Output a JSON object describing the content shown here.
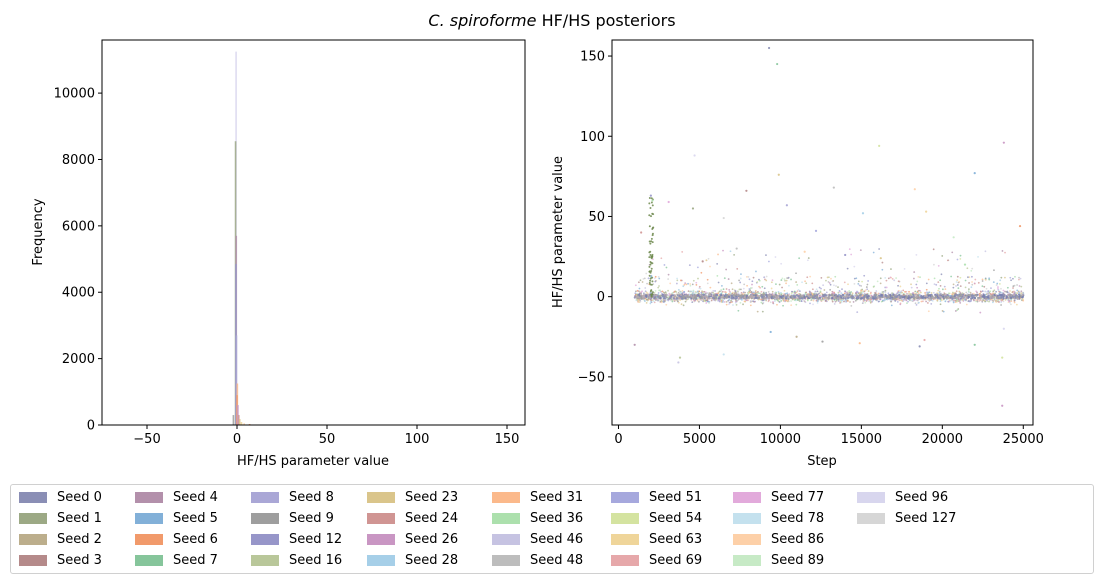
{
  "figure": {
    "title_italic": "C. spiroforme",
    "title_rest": " HF/HS posteriors"
  },
  "chart_data": [
    {
      "type": "histogram",
      "xlabel": "HF/HS parameter value",
      "ylabel": "Frequency",
      "xlim": [
        -75,
        160
      ],
      "ylim": [
        0,
        11600
      ],
      "xticks": [
        -50,
        0,
        50,
        100,
        150
      ],
      "yticks": [
        0,
        2000,
        4000,
        6000,
        8000,
        10000
      ],
      "bars": [
        {
          "x": -0.5,
          "value": 11250,
          "series": "Seed 96"
        },
        {
          "x": -0.8,
          "value": 8550,
          "series": "Seed 1"
        },
        {
          "x": -0.4,
          "value": 5700,
          "series": "Seed 4"
        },
        {
          "x": -0.6,
          "value": 4850,
          "series": "Seed 12"
        },
        {
          "x": -0.3,
          "value": 2700,
          "series": "Seed 8"
        },
        {
          "x": 0.2,
          "value": 1250,
          "series": "Seed 31"
        },
        {
          "x": 0.0,
          "value": 900,
          "series": "Seed 6"
        },
        {
          "x": 0.5,
          "value": 600,
          "series": "Seed 26"
        },
        {
          "x": 1.0,
          "value": 300,
          "series": "Seed 24"
        },
        {
          "x": -2.0,
          "value": 300,
          "series": "Seed 9"
        },
        {
          "x": 1.5,
          "value": 180,
          "series": "Seed 23"
        },
        {
          "x": 2.5,
          "value": 90,
          "series": "Seed 63"
        },
        {
          "x": 4.0,
          "value": 50,
          "series": "Seed 86"
        },
        {
          "x": 7.0,
          "value": 30,
          "series": "Seed 6"
        }
      ],
      "grid": false
    },
    {
      "type": "scatter",
      "xlabel": "Step",
      "ylabel": "HF/HS parameter value",
      "xlim": [
        -400,
        25600
      ],
      "ylim": [
        -80,
        160
      ],
      "xticks": [
        0,
        5000,
        10000,
        15000,
        20000,
        25000
      ],
      "yticks": [
        -50,
        0,
        50,
        100,
        150
      ],
      "step_range": [
        1000,
        25000
      ],
      "outliers": [
        {
          "x": 9300,
          "y": 155
        },
        {
          "x": 9800,
          "y": 145
        },
        {
          "x": 23800,
          "y": 96
        },
        {
          "x": 16100,
          "y": 94
        },
        {
          "x": 4700,
          "y": 88
        },
        {
          "x": 22000,
          "y": 77
        },
        {
          "x": 9900,
          "y": 76
        },
        {
          "x": 13300,
          "y": 68
        },
        {
          "x": 18300,
          "y": 67
        },
        {
          "x": 7900,
          "y": 66
        },
        {
          "x": 2000,
          "y": 63
        },
        {
          "x": 2100,
          "y": 60
        },
        {
          "x": 3100,
          "y": 59
        },
        {
          "x": 4600,
          "y": 55
        },
        {
          "x": 10400,
          "y": 57
        },
        {
          "x": 15100,
          "y": 52
        },
        {
          "x": 19000,
          "y": 53
        },
        {
          "x": 6500,
          "y": 49
        },
        {
          "x": 24800,
          "y": 44
        },
        {
          "x": 1400,
          "y": 40
        },
        {
          "x": 12200,
          "y": 41
        },
        {
          "x": 20700,
          "y": 37
        },
        {
          "x": 1000,
          "y": -30
        },
        {
          "x": 3800,
          "y": -38
        },
        {
          "x": 3700,
          "y": -41
        },
        {
          "x": 6500,
          "y": -36
        },
        {
          "x": 11000,
          "y": -25
        },
        {
          "x": 12600,
          "y": -28
        },
        {
          "x": 14900,
          "y": -29
        },
        {
          "x": 18900,
          "y": -27
        },
        {
          "x": 18600,
          "y": -31
        },
        {
          "x": 22000,
          "y": -30
        },
        {
          "x": 23700,
          "y": -68
        },
        {
          "x": 23700,
          "y": -38
        },
        {
          "x": 23800,
          "y": -20
        },
        {
          "x": 9400,
          "y": -22
        },
        {
          "x": 16200,
          "y": 24
        },
        {
          "x": 7300,
          "y": 30
        },
        {
          "x": 11500,
          "y": 28
        },
        {
          "x": 5200,
          "y": 22
        },
        {
          "x": 14000,
          "y": 26
        },
        {
          "x": 21400,
          "y": 20
        }
      ],
      "grid": false
    }
  ],
  "legend": {
    "placement": "bottom",
    "columns": 9,
    "items": [
      {
        "label": "Seed 0",
        "color": "#8a8eb5"
      },
      {
        "label": "Seed 1",
        "color": "#9ca985"
      },
      {
        "label": "Seed 2",
        "color": "#bcae8c"
      },
      {
        "label": "Seed 3",
        "color": "#b58a8a"
      },
      {
        "label": "Seed 4",
        "color": "#b390ab"
      },
      {
        "label": "Seed 5",
        "color": "#82b0d8"
      },
      {
        "label": "Seed 6",
        "color": "#f19a6b"
      },
      {
        "label": "Seed 7",
        "color": "#86c59b"
      },
      {
        "label": "Seed 8",
        "color": "#aaa7d6"
      },
      {
        "label": "Seed 9",
        "color": "#9e9e9e"
      },
      {
        "label": "Seed 12",
        "color": "#9796c9"
      },
      {
        "label": "Seed 16",
        "color": "#b9c79a"
      },
      {
        "label": "Seed 23",
        "color": "#dac58b"
      },
      {
        "label": "Seed 24",
        "color": "#d09593"
      },
      {
        "label": "Seed 26",
        "color": "#c996c3"
      },
      {
        "label": "Seed 28",
        "color": "#a6cfe8"
      },
      {
        "label": "Seed 31",
        "color": "#fbb98b"
      },
      {
        "label": "Seed 36",
        "color": "#ace0ad"
      },
      {
        "label": "Seed 46",
        "color": "#c6c3e2"
      },
      {
        "label": "Seed 48",
        "color": "#bdbdbd"
      },
      {
        "label": "Seed 51",
        "color": "#a6a8dd"
      },
      {
        "label": "Seed 54",
        "color": "#d4e3a0"
      },
      {
        "label": "Seed 63",
        "color": "#efd59a"
      },
      {
        "label": "Seed 69",
        "color": "#e6a8aa"
      },
      {
        "label": "Seed 77",
        "color": "#e2aadb"
      },
      {
        "label": "Seed 78",
        "color": "#c4e1ee"
      },
      {
        "label": "Seed 86",
        "color": "#fdd0a8"
      },
      {
        "label": "Seed 89",
        "color": "#c7eac6"
      },
      {
        "label": "Seed 96",
        "color": "#d8d6ee"
      },
      {
        "label": "Seed 127",
        "color": "#d6d6d6"
      }
    ]
  }
}
